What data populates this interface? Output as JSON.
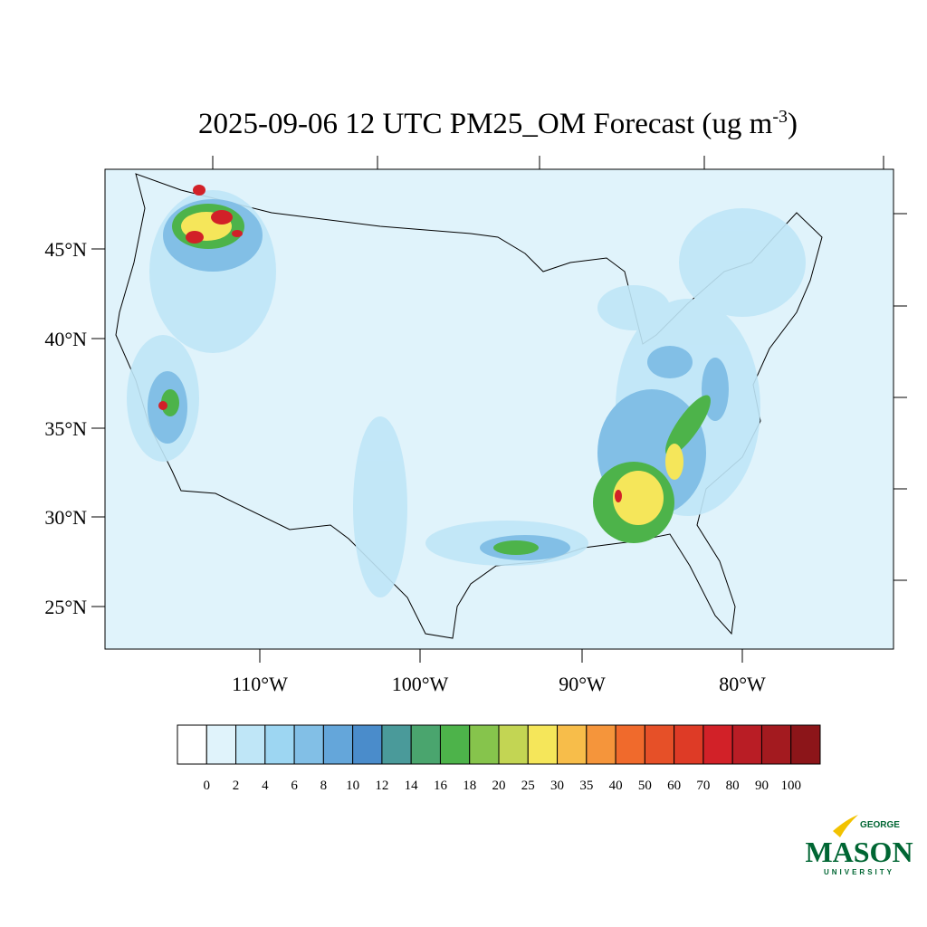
{
  "title": "2025-09-06 12 UTC PM25_OM Forecast (ug m",
  "title_superscript": "-3",
  "title_end": ")",
  "lat_labels": [
    "45°N",
    "40°N",
    "35°N",
    "30°N",
    "25°N"
  ],
  "lon_labels": [
    "110°W",
    "100°W",
    "90°W",
    "80°W"
  ],
  "colorbar": {
    "levels": [
      "0",
      "2",
      "4",
      "6",
      "8",
      "10",
      "12",
      "14",
      "16",
      "18",
      "20",
      "25",
      "30",
      "35",
      "40",
      "50",
      "60",
      "70",
      "80",
      "90",
      "100"
    ],
    "colors": [
      "#ffffff",
      "#e0f3fb",
      "#bfe6f7",
      "#9dd6f2",
      "#82bfe6",
      "#64a6da",
      "#4a8ccb",
      "#4a9a9a",
      "#4aa56e",
      "#4db34a",
      "#86c44c",
      "#c3d553",
      "#f5e65a",
      "#f7bd4a",
      "#f5953b",
      "#f06a2c",
      "#e65028",
      "#de3b26",
      "#d22128",
      "#b91d25",
      "#a31a1f",
      "#8c1519"
    ]
  },
  "logo": {
    "top": "GEORGE",
    "main": "MASON",
    "bottom": "UNIVERSITY"
  }
}
